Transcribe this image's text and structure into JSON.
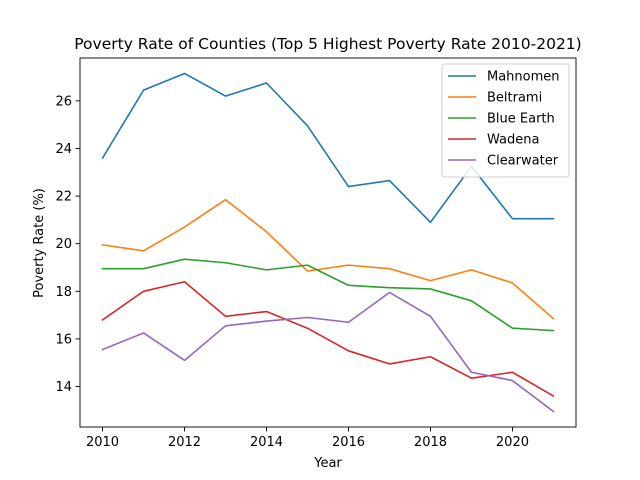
{
  "chart_data": {
    "type": "line",
    "title": "Poverty Rate of Counties (Top 5 Highest Poverty Rate 2010-2021)",
    "xlabel": "Year",
    "ylabel": "Poverty Rate (%)",
    "x": [
      2010,
      2011,
      2012,
      2013,
      2014,
      2015,
      2016,
      2017,
      2018,
      2019,
      2020,
      2021
    ],
    "xlim": [
      2009.45,
      2021.55
    ],
    "ylim": [
      12.3,
      27.8
    ],
    "xticks": [
      2010,
      2012,
      2014,
      2016,
      2018,
      2020
    ],
    "yticks": [
      14,
      16,
      18,
      20,
      22,
      24,
      26
    ],
    "grid": false,
    "legend_position": "top-right",
    "series": [
      {
        "name": "Mahnomen",
        "color": "#1f77b4",
        "values": [
          23.6,
          26.45,
          27.15,
          26.2,
          26.75,
          24.95,
          22.4,
          22.65,
          20.9,
          23.25,
          21.05,
          21.05
        ]
      },
      {
        "name": "Beltrami",
        "color": "#ff7f0e",
        "values": [
          19.95,
          19.7,
          20.7,
          21.85,
          20.5,
          18.85,
          19.1,
          18.95,
          18.45,
          18.9,
          18.35,
          16.85
        ]
      },
      {
        "name": "Blue Earth",
        "color": "#2ca02c",
        "values": [
          18.95,
          18.95,
          19.35,
          19.2,
          18.9,
          19.1,
          18.25,
          18.15,
          18.1,
          17.6,
          16.45,
          16.35
        ]
      },
      {
        "name": "Wadena",
        "color": "#d62728",
        "values": [
          16.8,
          18.0,
          18.4,
          16.95,
          17.15,
          16.45,
          15.5,
          14.95,
          15.25,
          14.35,
          14.6,
          13.6
        ]
      },
      {
        "name": "Clearwater",
        "color": "#9467bd",
        "values": [
          15.55,
          16.25,
          15.1,
          16.55,
          16.75,
          16.9,
          16.7,
          17.95,
          16.95,
          14.6,
          14.25,
          12.95
        ]
      }
    ]
  }
}
